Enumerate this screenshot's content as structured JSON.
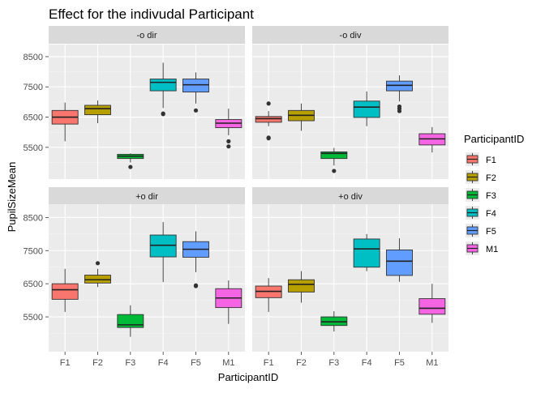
{
  "chart_data": {
    "type": "boxplot",
    "title": "Effect for the indivudal Participant",
    "xlabel": "ParticipantID",
    "ylabel": "PupilSizeMean",
    "categories": [
      "F1",
      "F2",
      "F3",
      "F4",
      "F5",
      "M1"
    ],
    "ylim": [
      4450,
      8900
    ],
    "yticks": [
      5500,
      6500,
      7500,
      8500
    ],
    "grid": true,
    "legend": {
      "title": "ParticipantID",
      "position": "right",
      "entries": [
        "F1",
        "F2",
        "F3",
        "F4",
        "F5",
        "M1"
      ]
    },
    "colors": {
      "F1": "#F8766D",
      "F2": "#B79F00",
      "F3": "#00BA38",
      "F4": "#00BFC4",
      "F5": "#619CFF",
      "M1": "#F564E3",
      "panel_bg": "#EBEBEB",
      "strip_bg": "#D9D9D9"
    },
    "facets": [
      {
        "label": "-o dir",
        "boxes": [
          {
            "category": "F1",
            "whisker_low": 5700,
            "q1": 6270,
            "median": 6500,
            "q3": 6720,
            "whisker_high": 6980,
            "outliers": []
          },
          {
            "category": "F2",
            "whisker_low": 6300,
            "q1": 6580,
            "median": 6780,
            "q3": 6890,
            "whisker_high": 7050,
            "outliers": []
          },
          {
            "category": "F3",
            "whisker_low": 5000,
            "q1": 5130,
            "median": 5210,
            "q3": 5270,
            "whisker_high": 5300,
            "outliers": [
              4850
            ]
          },
          {
            "category": "F4",
            "whisker_low": 6800,
            "q1": 7370,
            "median": 7650,
            "q3": 7760,
            "whisker_high": 8300,
            "outliers": [
              6600,
              6620
            ]
          },
          {
            "category": "F5",
            "whisker_low": 6950,
            "q1": 7330,
            "median": 7570,
            "q3": 7760,
            "whisker_high": 7980,
            "outliers": [
              6720
            ]
          },
          {
            "category": "M1",
            "whisker_low": 5900,
            "q1": 6150,
            "median": 6300,
            "q3": 6420,
            "whisker_high": 6780,
            "outliers": [
              5700,
              5530
            ]
          }
        ]
      },
      {
        "label": "-o div",
        "boxes": [
          {
            "category": "F1",
            "whisker_low": 6200,
            "q1": 6330,
            "median": 6450,
            "q3": 6520,
            "whisker_high": 6700,
            "outliers": [
              6950,
              5820,
              5800
            ]
          },
          {
            "category": "F2",
            "whisker_low": 6050,
            "q1": 6380,
            "median": 6560,
            "q3": 6720,
            "whisker_high": 6950,
            "outliers": []
          },
          {
            "category": "F3",
            "whisker_low": 4900,
            "q1": 5130,
            "median": 5300,
            "q3": 5350,
            "whisker_high": 5480,
            "outliers": [
              4720
            ]
          },
          {
            "category": "F4",
            "whisker_low": 6200,
            "q1": 6490,
            "median": 6830,
            "q3": 7030,
            "whisker_high": 7350,
            "outliers": []
          },
          {
            "category": "F5",
            "whisker_low": 7020,
            "q1": 7370,
            "median": 7550,
            "q3": 7690,
            "whisker_high": 7880,
            "outliers": [
              6850,
              6780,
              6700
            ]
          },
          {
            "category": "M1",
            "whisker_low": 5330,
            "q1": 5580,
            "median": 5780,
            "q3": 5950,
            "whisker_high": 6170,
            "outliers": []
          }
        ]
      },
      {
        "label": "+o dir",
        "boxes": [
          {
            "category": "F1",
            "whisker_low": 5650,
            "q1": 6030,
            "median": 6320,
            "q3": 6500,
            "whisker_high": 6950,
            "outliers": []
          },
          {
            "category": "F2",
            "whisker_low": 6400,
            "q1": 6520,
            "median": 6620,
            "q3": 6760,
            "whisker_high": 6950,
            "outliers": [
              7120
            ]
          },
          {
            "category": "F3",
            "whisker_low": 4900,
            "q1": 5180,
            "median": 5260,
            "q3": 5570,
            "whisker_high": 5850,
            "outliers": []
          },
          {
            "category": "F4",
            "whisker_low": 6550,
            "q1": 7310,
            "median": 7660,
            "q3": 7970,
            "whisker_high": 8360,
            "outliers": []
          },
          {
            "category": "F5",
            "whisker_low": 6850,
            "q1": 7300,
            "median": 7540,
            "q3": 7770,
            "whisker_high": 8080,
            "outliers": [
              6450,
              6430
            ]
          },
          {
            "category": "M1",
            "whisker_low": 5290,
            "q1": 5780,
            "median": 6070,
            "q3": 6350,
            "whisker_high": 6600,
            "outliers": []
          }
        ]
      },
      {
        "label": "+o div",
        "boxes": [
          {
            "category": "F1",
            "whisker_low": 5650,
            "q1": 6080,
            "median": 6270,
            "q3": 6430,
            "whisker_high": 6670,
            "outliers": []
          },
          {
            "category": "F2",
            "whisker_low": 5930,
            "q1": 6250,
            "median": 6480,
            "q3": 6620,
            "whisker_high": 6880,
            "outliers": []
          },
          {
            "category": "F3",
            "whisker_low": 5060,
            "q1": 5240,
            "median": 5350,
            "q3": 5500,
            "whisker_high": 5670,
            "outliers": []
          },
          {
            "category": "F4",
            "whisker_low": 6880,
            "q1": 7000,
            "median": 7550,
            "q3": 7850,
            "whisker_high": 8000,
            "outliers": []
          },
          {
            "category": "F5",
            "whisker_low": 6560,
            "q1": 6750,
            "median": 7180,
            "q3": 7520,
            "whisker_high": 7870,
            "outliers": []
          },
          {
            "category": "M1",
            "whisker_low": 5320,
            "q1": 5580,
            "median": 5760,
            "q3": 6050,
            "whisker_high": 6500,
            "outliers": []
          }
        ]
      }
    ]
  }
}
